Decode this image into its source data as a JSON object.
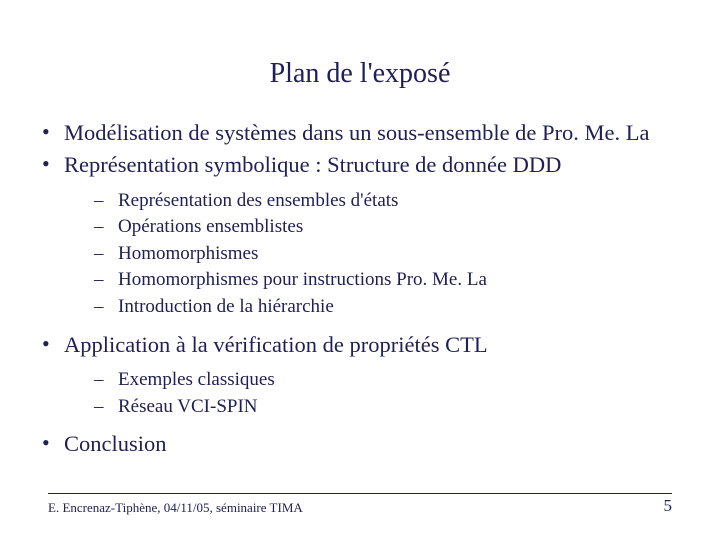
{
  "colors": {
    "text": "#202056",
    "background": "#ffffff",
    "divider": "#202056"
  },
  "typography": {
    "font_family": "Times New Roman",
    "title_fontsize": 28,
    "level1_fontsize": 22.5,
    "level2_fontsize": 19,
    "footer_fontsize": 13,
    "page_number_fontsize": 17
  },
  "title": "Plan de l'exposé",
  "bullets": {
    "b1": "Modélisation de systèmes dans un sous-ensemble de Pro. Me. La",
    "b2": "Représentation symbolique : Structure de donnée DDD",
    "b2_sub": {
      "s1": "Représentation des ensembles d'états",
      "s2": "Opérations ensemblistes",
      "s3": "Homomorphismes",
      "s4": "Homomorphismes pour instructions Pro. Me. La",
      "s5": "Introduction de la hiérarchie"
    },
    "b3": "Application à la vérification de propriétés CTL",
    "b3_sub": {
      "s1": "Exemples classiques",
      "s2": "Réseau VCI-SPIN"
    },
    "b4": "Conclusion"
  },
  "footer": "E. Encrenaz-Tiphène, 04/11/05, séminaire TIMA",
  "page_number": "5"
}
